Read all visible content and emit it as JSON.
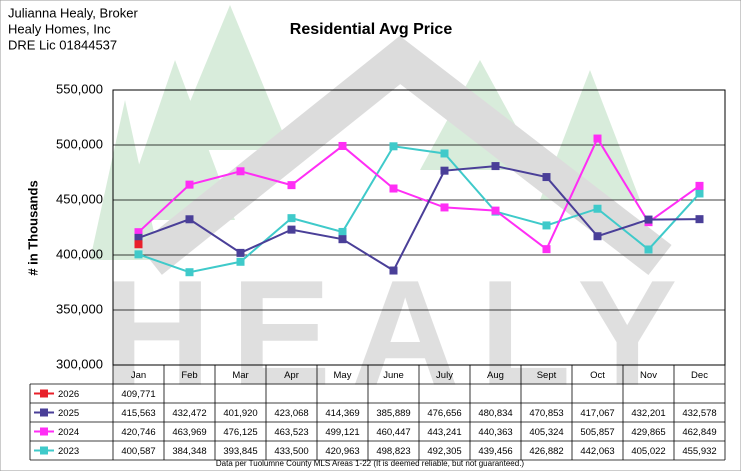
{
  "header": {
    "lines": [
      "Julianna Healy, Broker",
      "Healy Homes, Inc",
      "DRE Lic 01844537"
    ]
  },
  "watermark": "HEALY",
  "chart_data": {
    "type": "line",
    "title": "Residential Avg Price",
    "y_label": "# in Thousands",
    "categories": [
      "Jan",
      "Feb",
      "Mar",
      "Apr",
      "May",
      "June",
      "July",
      "Aug",
      "Sept",
      "Oct",
      "Nov",
      "Dec"
    ],
    "series": [
      {
        "name": "2026",
        "color": "#e8202a",
        "values": [
          409771,
          null,
          null,
          null,
          null,
          null,
          null,
          null,
          null,
          null,
          null,
          null
        ],
        "value_labels": [
          "409,771",
          null,
          null,
          null,
          null,
          null,
          null,
          null,
          null,
          null,
          null,
          null
        ]
      },
      {
        "name": "2025",
        "color": "#4a3f98",
        "values": [
          415563,
          432472,
          401920,
          423068,
          414369,
          385889,
          476656,
          480834,
          470853,
          417067,
          432201,
          432578
        ],
        "value_labels": [
          "415,563",
          "432,472",
          "401,920",
          "423,068",
          "414,369",
          "385,889",
          "476,656",
          "480,834",
          "470,853",
          "417,067",
          "432,201",
          "432,578"
        ]
      },
      {
        "name": "2024",
        "color": "#ff2ef5",
        "values": [
          420746,
          463969,
          476125,
          463523,
          499121,
          460447,
          443241,
          440363,
          405324,
          505857,
          429865,
          462849
        ],
        "value_labels": [
          "420,746",
          "463,969",
          "476,125",
          "463,523",
          "499,121",
          "460,447",
          "443,241",
          "440,363",
          "405,324",
          "505,857",
          "429,865",
          "462,849"
        ]
      },
      {
        "name": "2023",
        "color": "#3fcaca",
        "values": [
          400587,
          384348,
          393845,
          433500,
          420963,
          498823,
          492305,
          439456,
          426882,
          442063,
          405022,
          455932
        ],
        "value_labels": [
          "400,587",
          "384,348",
          "393,845",
          "433,500",
          "420,963",
          "498,823",
          "492,305",
          "439,456",
          "426,882",
          "442,063",
          "405,022",
          "455,932"
        ]
      }
    ],
    "ylim": [
      300000,
      550000
    ],
    "yticks": [
      {
        "value": 300000,
        "label": "300,000"
      },
      {
        "value": 350000,
        "label": "350,000"
      },
      {
        "value": 400000,
        "label": "400,000"
      },
      {
        "value": 450000,
        "label": "450,000"
      },
      {
        "value": 500000,
        "label": "500,000"
      },
      {
        "value": 550000,
        "label": "550,000"
      }
    ],
    "grid": true,
    "footnote": "Data per Tuolumne County MLS Areas 1-22 (It is deemed reliable, but not guaranteed.)"
  }
}
